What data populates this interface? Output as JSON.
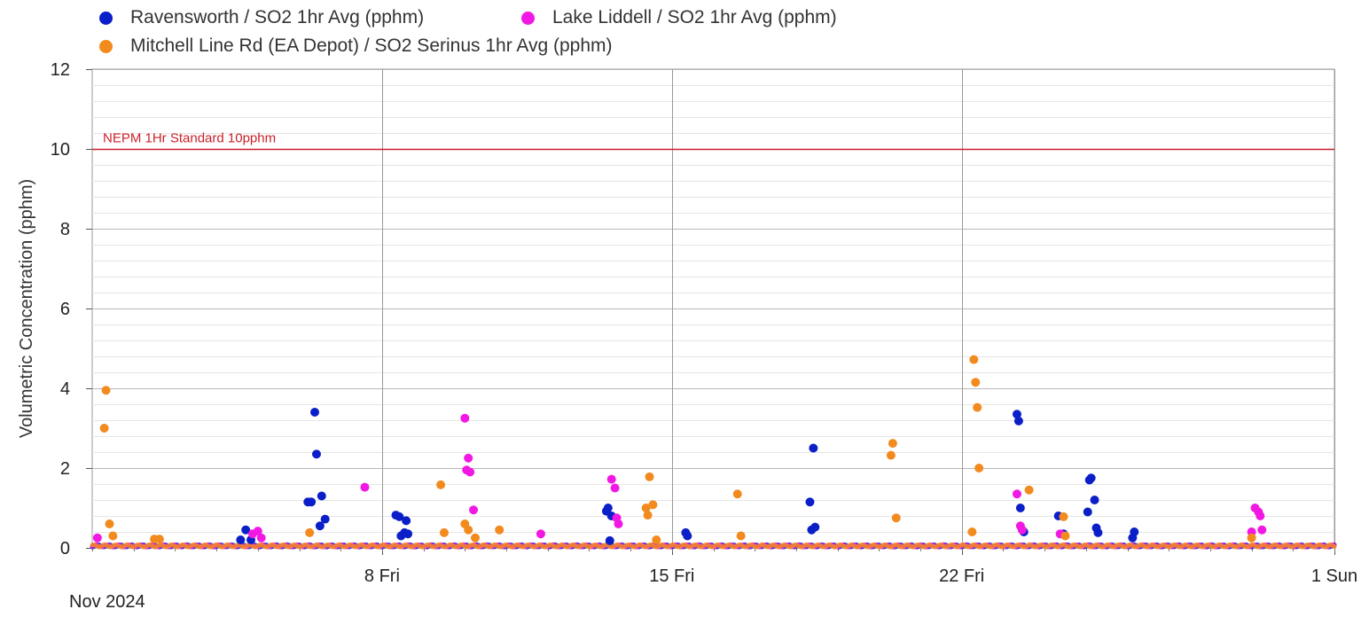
{
  "chart_data": {
    "type": "scatter",
    "title": "",
    "xlabel": "",
    "ylabel": "Volumetric Concentration (pphm)",
    "x_range": [
      "2024-11-01",
      "2024-12-01"
    ],
    "ylim": [
      0,
      12
    ],
    "y_ticks": [
      0,
      2,
      4,
      6,
      8,
      10,
      12
    ],
    "x_ticks": [
      {
        "date": "2024-11-08",
        "label": "8 Fri"
      },
      {
        "date": "2024-11-15",
        "label": "15 Fri"
      },
      {
        "date": "2024-11-22",
        "label": "22 Fri"
      },
      {
        "date": "2024-12-01",
        "label": "1 Sun"
      }
    ],
    "period_label": "Nov 2024",
    "grid": true,
    "legend_position": "top-left",
    "reference_line": {
      "value": 10,
      "label": "NEPM 1Hr Standard 10pphm",
      "color": "#cc1f2a"
    },
    "series": [
      {
        "name": "Ravensworth / SO2 1hr Avg (pphm)",
        "color": "#0b1fc8",
        "points": [
          [
            "2024-11-04 14:00",
            0.2
          ],
          [
            "2024-11-04 17:00",
            0.45
          ],
          [
            "2024-11-04 20:00",
            0.2
          ],
          [
            "2024-11-06 05:00",
            1.15
          ],
          [
            "2024-11-06 07:00",
            1.15
          ],
          [
            "2024-11-06 09:00",
            3.4
          ],
          [
            "2024-11-06 10:00",
            2.35
          ],
          [
            "2024-11-06 13:00",
            1.3
          ],
          [
            "2024-11-06 15:00",
            0.72
          ],
          [
            "2024-11-06 12:00",
            0.55
          ],
          [
            "2024-11-08 08:00",
            0.82
          ],
          [
            "2024-11-08 10:00",
            0.78
          ],
          [
            "2024-11-08 14:00",
            0.68
          ],
          [
            "2024-11-08 11:00",
            0.3
          ],
          [
            "2024-11-08 13:00",
            0.38
          ],
          [
            "2024-11-08 15:00",
            0.35
          ],
          [
            "2024-11-13 10:00",
            0.92
          ],
          [
            "2024-11-13 11:00",
            1.0
          ],
          [
            "2024-11-13 13:00",
            0.8
          ],
          [
            "2024-11-13 12:00",
            0.18
          ],
          [
            "2024-11-15 08:00",
            0.38
          ],
          [
            "2024-11-15 09:00",
            0.3
          ],
          [
            "2024-11-18 08:00",
            1.15
          ],
          [
            "2024-11-18 10:00",
            2.5
          ],
          [
            "2024-11-18 09:00",
            0.45
          ],
          [
            "2024-11-18 11:00",
            0.52
          ],
          [
            "2024-11-23 08:00",
            3.35
          ],
          [
            "2024-11-23 09:00",
            3.18
          ],
          [
            "2024-11-23 10:00",
            1.0
          ],
          [
            "2024-11-23 12:00",
            0.4
          ],
          [
            "2024-11-24 08:00",
            0.8
          ],
          [
            "2024-11-24 11:00",
            0.35
          ],
          [
            "2024-11-25 01:00",
            0.9
          ],
          [
            "2024-11-25 02:00",
            1.7
          ],
          [
            "2024-11-25 03:00",
            1.75
          ],
          [
            "2024-11-25 05:00",
            1.2
          ],
          [
            "2024-11-25 06:00",
            0.5
          ],
          [
            "2024-11-25 07:00",
            0.38
          ],
          [
            "2024-11-26 04:00",
            0.4
          ],
          [
            "2024-11-26 03:00",
            0.25
          ]
        ]
      },
      {
        "name": "Lake Liddell / SO2 1hr Avg (pphm)",
        "color": "#f218e4",
        "points": [
          [
            "2024-11-01 03:00",
            0.25
          ],
          [
            "2024-11-04 21:00",
            0.35
          ],
          [
            "2024-11-05 00:00",
            0.42
          ],
          [
            "2024-11-05 02:00",
            0.25
          ],
          [
            "2024-11-07 14:00",
            1.52
          ],
          [
            "2024-11-10 00:00",
            3.25
          ],
          [
            "2024-11-10 02:00",
            2.25
          ],
          [
            "2024-11-10 01:00",
            1.95
          ],
          [
            "2024-11-10 03:00",
            1.9
          ],
          [
            "2024-11-10 05:00",
            0.95
          ],
          [
            "2024-11-11 20:00",
            0.35
          ],
          [
            "2024-11-13 13:00",
            1.72
          ],
          [
            "2024-11-13 15:00",
            1.5
          ],
          [
            "2024-11-13 16:00",
            0.75
          ],
          [
            "2024-11-13 17:00",
            0.6
          ],
          [
            "2024-11-23 08:00",
            1.35
          ],
          [
            "2024-11-23 10:00",
            0.55
          ],
          [
            "2024-11-23 11:00",
            0.45
          ],
          [
            "2024-11-24 09:00",
            0.35
          ],
          [
            "2024-11-29 02:00",
            1.0
          ],
          [
            "2024-11-29 04:00",
            0.9
          ],
          [
            "2024-11-29 05:00",
            0.8
          ],
          [
            "2024-11-29 06:00",
            0.45
          ],
          [
            "2024-11-29 00:00",
            0.4
          ]
        ]
      },
      {
        "name": "Mitchell Line Rd (EA Depot) / SO2 Serinus 1hr Avg (pphm)",
        "color": "#f28a1e",
        "points": [
          [
            "2024-11-01 07:00",
            3.0
          ],
          [
            "2024-11-01 08:00",
            3.95
          ],
          [
            "2024-11-01 10:00",
            0.6
          ],
          [
            "2024-11-01 12:00",
            0.3
          ],
          [
            "2024-11-02 12:00",
            0.22
          ],
          [
            "2024-11-02 15:00",
            0.22
          ],
          [
            "2024-11-06 06:00",
            0.38
          ],
          [
            "2024-11-09 10:00",
            1.58
          ],
          [
            "2024-11-09 12:00",
            0.38
          ],
          [
            "2024-11-10 00:00",
            0.6
          ],
          [
            "2024-11-10 02:00",
            0.45
          ],
          [
            "2024-11-10 06:00",
            0.25
          ],
          [
            "2024-11-10 20:00",
            0.45
          ],
          [
            "2024-11-14 09:00",
            1.0
          ],
          [
            "2024-11-14 10:00",
            0.82
          ],
          [
            "2024-11-14 11:00",
            1.78
          ],
          [
            "2024-11-14 13:00",
            1.08
          ],
          [
            "2024-11-14 15:00",
            0.2
          ],
          [
            "2024-11-16 14:00",
            1.35
          ],
          [
            "2024-11-16 16:00",
            0.3
          ],
          [
            "2024-11-20 07:00",
            2.32
          ],
          [
            "2024-11-20 08:00",
            2.62
          ],
          [
            "2024-11-20 10:00",
            0.75
          ],
          [
            "2024-11-22 06:00",
            0.4
          ],
          [
            "2024-11-22 07:00",
            4.72
          ],
          [
            "2024-11-22 08:00",
            4.15
          ],
          [
            "2024-11-22 09:00",
            3.52
          ],
          [
            "2024-11-22 10:00",
            2.0
          ],
          [
            "2024-11-23 15:00",
            1.45
          ],
          [
            "2024-11-24 11:00",
            0.78
          ],
          [
            "2024-11-24 12:00",
            0.3
          ],
          [
            "2024-11-29 00:00",
            0.25
          ]
        ]
      }
    ]
  }
}
